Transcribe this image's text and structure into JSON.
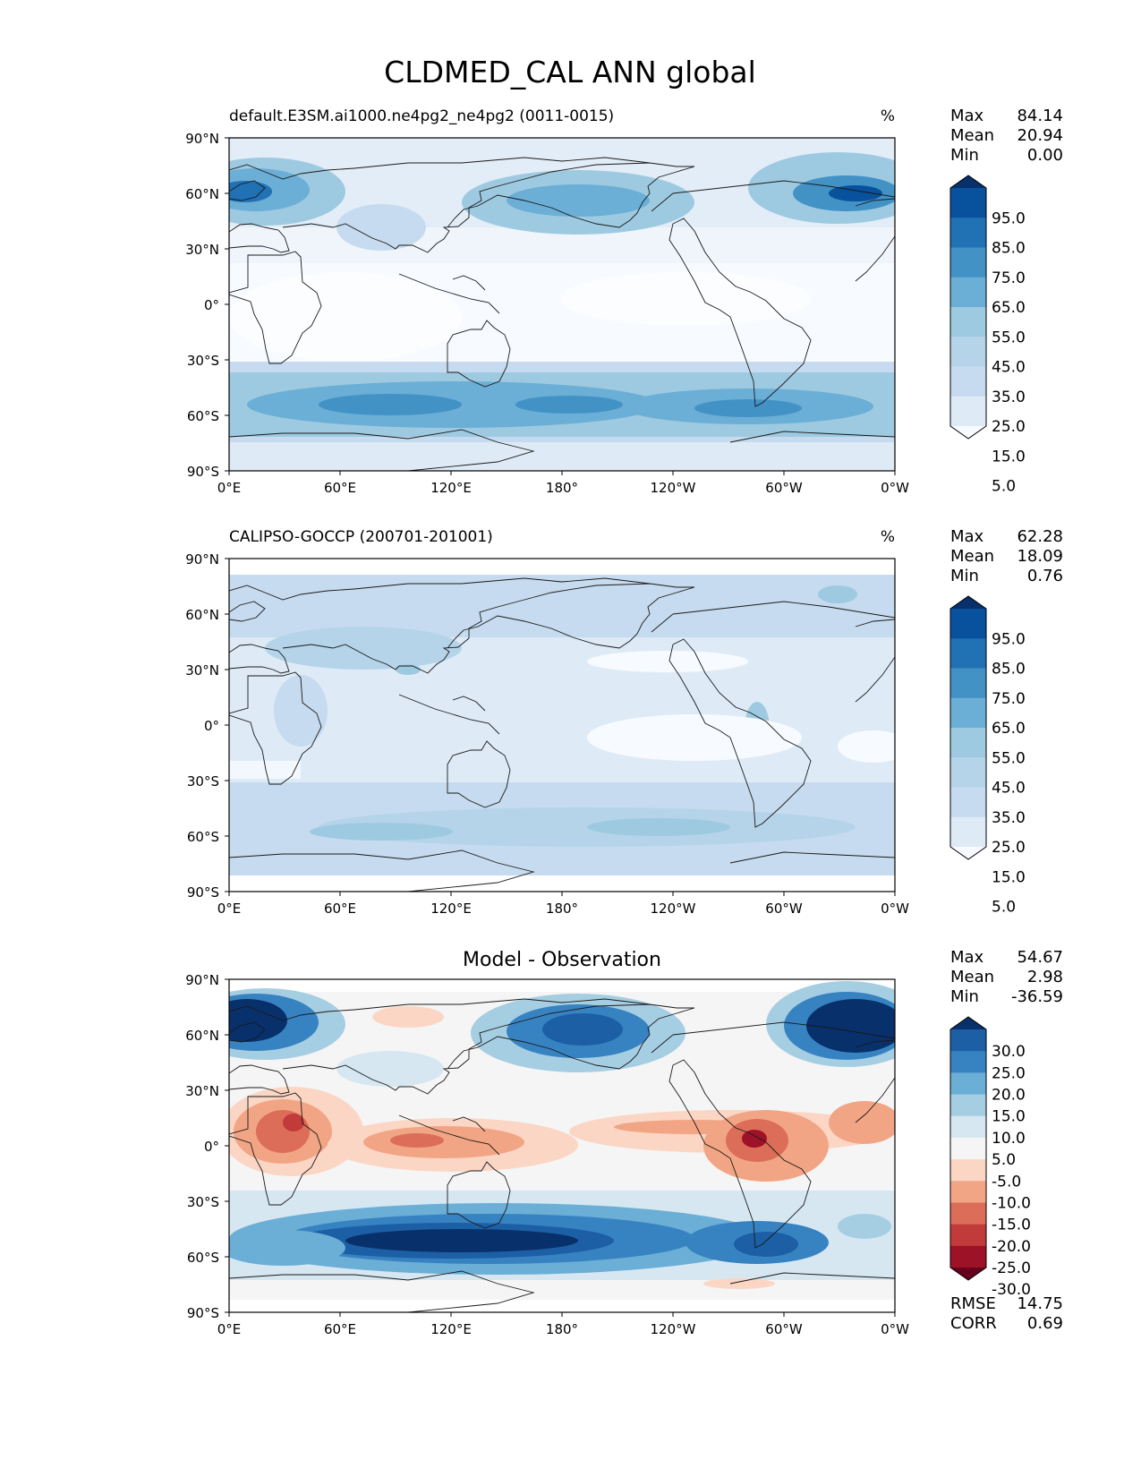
{
  "figure": {
    "title": "CLDMED_CAL ANN global"
  },
  "axes": {
    "lat_ticks": [
      "90°N",
      "60°N",
      "30°N",
      "0°",
      "30°S",
      "60°S",
      "90°S"
    ],
    "lon_ticks": [
      "0°E",
      "60°E",
      "120°E",
      "180°",
      "120°W",
      "60°W",
      "0°W"
    ]
  },
  "panels": [
    {
      "id": "model",
      "title_left": "default.E3SM.ai1000.ne4pg2_ne4pg2 (0011-0015)",
      "title_center": "",
      "units": "%",
      "stats": [
        {
          "label": "Max",
          "value": "84.14"
        },
        {
          "label": "Mean",
          "value": "20.94"
        },
        {
          "label": "Min",
          "value": "0.00"
        }
      ],
      "colorbar_labels": [
        "95.0",
        "85.0",
        "75.0",
        "65.0",
        "55.0",
        "45.0",
        "35.0",
        "25.0",
        "15.0",
        "5.0"
      ],
      "colorbar_colors": [
        "#08306b",
        "#08519c",
        "#2171b5",
        "#4292c6",
        "#6baed6",
        "#9ecae1",
        "#b5d4e9",
        "#c6dbef",
        "#deebf7",
        "#f7fbff"
      ]
    },
    {
      "id": "obs",
      "title_left": "CALIPSO-GOCCP (200701-201001)",
      "title_center": "",
      "units": "%",
      "stats": [
        {
          "label": "Max",
          "value": "62.28"
        },
        {
          "label": "Mean",
          "value": "18.09"
        },
        {
          "label": "Min",
          "value": "0.76"
        }
      ],
      "colorbar_labels": [
        "95.0",
        "85.0",
        "75.0",
        "65.0",
        "55.0",
        "45.0",
        "35.0",
        "25.0",
        "15.0",
        "5.0"
      ],
      "colorbar_colors": [
        "#08306b",
        "#08519c",
        "#2171b5",
        "#4292c6",
        "#6baed6",
        "#9ecae1",
        "#b5d4e9",
        "#c6dbef",
        "#deebf7",
        "#f7fbff"
      ]
    },
    {
      "id": "diff",
      "title_left": "",
      "title_center": "Model - Observation",
      "units": "",
      "stats": [
        {
          "label": "Max",
          "value": "54.67"
        },
        {
          "label": "Mean",
          "value": "2.98"
        },
        {
          "label": "Min",
          "value": "-36.59"
        }
      ],
      "bottom_stats": [
        {
          "label": "RMSE",
          "value": "14.75"
        },
        {
          "label": "CORR",
          "value": "0.69"
        }
      ],
      "colorbar_labels": [
        "30.0",
        "25.0",
        "20.0",
        "15.0",
        "10.0",
        "5.0",
        "-5.0",
        "-10.0",
        "-15.0",
        "-20.0",
        "-25.0",
        "-30.0"
      ],
      "colorbar_colors": [
        "#08306b",
        "#1c5fa5",
        "#3783c1",
        "#6baed6",
        "#a6cee3",
        "#d6e7f2",
        "#f5f5f5",
        "#fbd6c4",
        "#f2a585",
        "#dc6e59",
        "#c23b3b",
        "#9e1228",
        "#67001f"
      ]
    }
  ]
}
